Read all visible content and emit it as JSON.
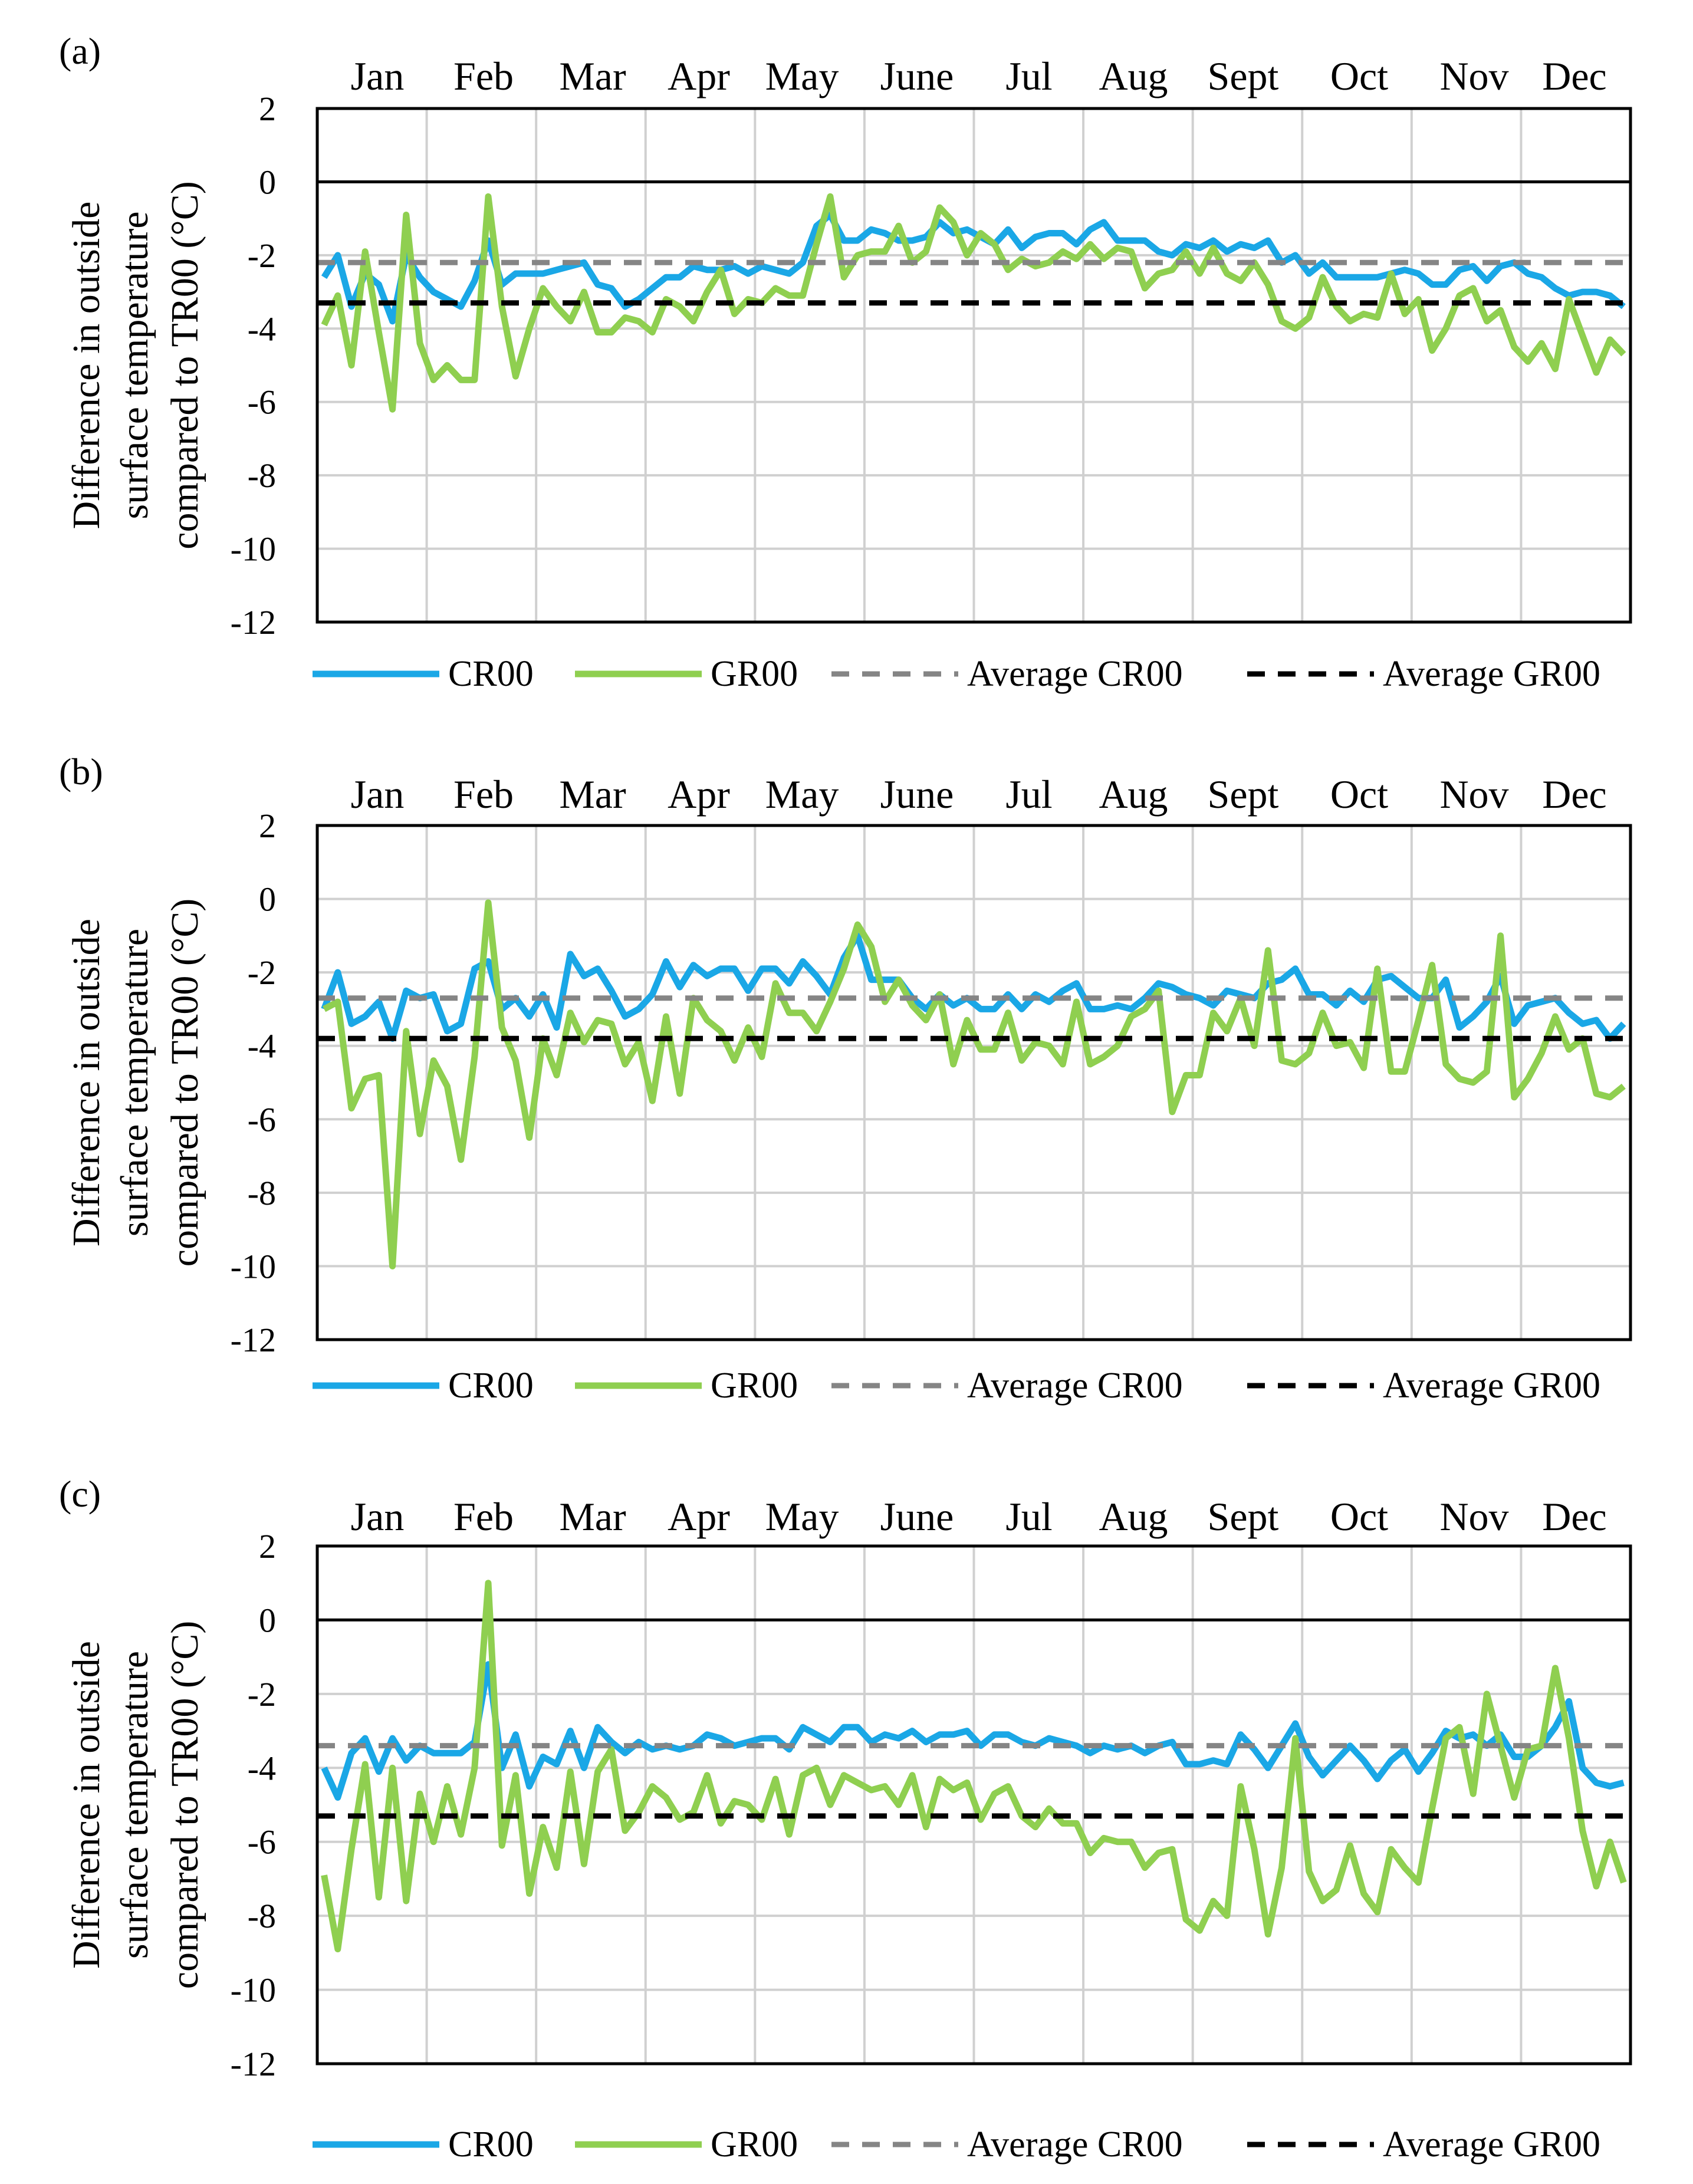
{
  "figure": {
    "legend": {
      "cr": "CR00",
      "gr": "GR00",
      "avg_cr": "Average CR00",
      "avg_gr": "Average GR00"
    },
    "colors": {
      "cr": "#1aa7e6",
      "gr": "#8fcf50",
      "avg_cr": "#858585",
      "avg_gr": "#000000",
      "grid": "#d0d0d0"
    }
  },
  "chart_data": [
    {
      "type": "line",
      "panel_label": "(a)",
      "ylabel": [
        "Difference in outside",
        "surface temperature",
        "compared to TR00 (°C)"
      ],
      "xlabel": "",
      "months": [
        "Jan",
        "Feb",
        "Mar",
        "Apr",
        "May",
        "June",
        "Jul",
        "Aug",
        "Sept",
        "Oct",
        "Nov",
        "Dec"
      ],
      "ylim": [
        -12,
        2
      ],
      "yticks": [
        2,
        0,
        -2,
        -4,
        -6,
        -8,
        -10,
        -12
      ],
      "grid": true,
      "zero_line": true,
      "average_cr": -2.2,
      "average_gr": -3.3,
      "series": [
        {
          "name": "CR00",
          "values": [
            -2.6,
            -2.0,
            -3.4,
            -2.5,
            -2.8,
            -3.8,
            -2.0,
            -2.6,
            -3.0,
            -3.2,
            -3.4,
            -2.7,
            -1.6,
            -2.8,
            -2.5,
            -2.5,
            -2.5,
            -2.4,
            -2.3,
            -2.2,
            -2.8,
            -2.9,
            -3.4,
            -3.2,
            -2.9,
            -2.6,
            -2.6,
            -2.3,
            -2.4,
            -2.4,
            -2.3,
            -2.5,
            -2.3,
            -2.4,
            -2.5,
            -2.2,
            -1.2,
            -0.9,
            -1.6,
            -1.6,
            -1.3,
            -1.4,
            -1.6,
            -1.6,
            -1.5,
            -1.1,
            -1.4,
            -1.3,
            -1.5,
            -1.7,
            -1.3,
            -1.8,
            -1.5,
            -1.4,
            -1.4,
            -1.7,
            -1.3,
            -1.1,
            -1.6,
            -1.6,
            -1.6,
            -1.9,
            -2.0,
            -1.7,
            -1.8,
            -1.6,
            -1.9,
            -1.7,
            -1.8,
            -1.6,
            -2.2,
            -2.0,
            -2.5,
            -2.2,
            -2.6,
            -2.6,
            -2.6,
            -2.6,
            -2.5,
            -2.4,
            -2.5,
            -2.8,
            -2.8,
            -2.4,
            -2.3,
            -2.7,
            -2.3,
            -2.2,
            -2.5,
            -2.6,
            -2.9,
            -3.1,
            -3.0,
            -3.0,
            -3.1,
            -3.4
          ]
        },
        {
          "name": "GR00",
          "values": [
            -3.9,
            -3.1,
            -5.0,
            -1.9,
            -4.1,
            -6.2,
            -0.9,
            -4.4,
            -5.4,
            -5.0,
            -5.4,
            -5.4,
            -0.4,
            -3.4,
            -5.3,
            -4.0,
            -2.9,
            -3.4,
            -3.8,
            -3.0,
            -4.1,
            -4.1,
            -3.7,
            -3.8,
            -4.1,
            -3.2,
            -3.4,
            -3.8,
            -3.0,
            -2.4,
            -3.6,
            -3.2,
            -3.3,
            -2.9,
            -3.1,
            -3.1,
            -1.7,
            -0.4,
            -2.6,
            -2.0,
            -1.9,
            -1.9,
            -1.2,
            -2.2,
            -1.9,
            -0.7,
            -1.1,
            -2.0,
            -1.4,
            -1.7,
            -2.4,
            -2.1,
            -2.3,
            -2.2,
            -1.9,
            -2.1,
            -1.7,
            -2.1,
            -1.8,
            -1.9,
            -2.9,
            -2.5,
            -2.4,
            -1.9,
            -2.5,
            -1.8,
            -2.5,
            -2.7,
            -2.2,
            -2.8,
            -3.8,
            -4.0,
            -3.7,
            -2.6,
            -3.4,
            -3.8,
            -3.6,
            -3.7,
            -2.5,
            -3.6,
            -3.2,
            -4.6,
            -4.0,
            -3.1,
            -2.9,
            -3.8,
            -3.5,
            -4.5,
            -4.9,
            -4.4,
            -5.1,
            -3.2,
            -4.2,
            -5.2,
            -4.3,
            -4.7
          ]
        }
      ]
    },
    {
      "type": "line",
      "panel_label": "(b)",
      "ylabel": [
        "Difference in outside",
        "surface temperature",
        "compared to TR00 (°C)"
      ],
      "xlabel": "",
      "months": [
        "Jan",
        "Feb",
        "Mar",
        "Apr",
        "May",
        "June",
        "Jul",
        "Aug",
        "Sept",
        "Oct",
        "Nov",
        "Dec"
      ],
      "ylim": [
        -12,
        2
      ],
      "yticks": [
        2,
        0,
        -2,
        -4,
        -6,
        -8,
        -10,
        -12
      ],
      "grid": true,
      "zero_line": false,
      "average_cr": -2.7,
      "average_gr": -3.8,
      "series": [
        {
          "name": "CR00",
          "values": [
            -3.0,
            -2.0,
            -3.4,
            -3.2,
            -2.8,
            -3.8,
            -2.5,
            -2.7,
            -2.6,
            -3.6,
            -3.4,
            -1.9,
            -1.7,
            -3.0,
            -2.7,
            -3.2,
            -2.6,
            -3.5,
            -1.5,
            -2.1,
            -1.9,
            -2.5,
            -3.2,
            -3.0,
            -2.6,
            -1.7,
            -2.4,
            -1.8,
            -2.1,
            -1.9,
            -1.9,
            -2.5,
            -1.9,
            -1.9,
            -2.3,
            -1.7,
            -2.1,
            -2.6,
            -1.6,
            -1.0,
            -2.2,
            -2.2,
            -2.2,
            -2.7,
            -3.0,
            -2.6,
            -2.9,
            -2.7,
            -3.0,
            -3.0,
            -2.6,
            -3.0,
            -2.6,
            -2.8,
            -2.5,
            -2.3,
            -3.0,
            -3.0,
            -2.9,
            -3.0,
            -2.7,
            -2.3,
            -2.4,
            -2.6,
            -2.7,
            -2.9,
            -2.5,
            -2.6,
            -2.7,
            -2.3,
            -2.2,
            -1.9,
            -2.6,
            -2.6,
            -2.9,
            -2.5,
            -2.8,
            -2.2,
            -2.1,
            -2.4,
            -2.7,
            -2.7,
            -2.2,
            -3.5,
            -3.2,
            -2.8,
            -2.1,
            -3.4,
            -2.9,
            -2.8,
            -2.7,
            -3.1,
            -3.4,
            -3.3,
            -3.8,
            -3.4
          ]
        },
        {
          "name": "GR00",
          "values": [
            -3.0,
            -2.8,
            -5.7,
            -4.9,
            -4.8,
            -10.0,
            -3.6,
            -6.4,
            -4.4,
            -5.1,
            -7.1,
            -4.3,
            -0.1,
            -3.5,
            -4.4,
            -6.5,
            -3.8,
            -4.8,
            -3.1,
            -3.9,
            -3.3,
            -3.4,
            -4.5,
            -3.9,
            -5.5,
            -3.2,
            -5.3,
            -2.7,
            -3.3,
            -3.6,
            -4.4,
            -3.5,
            -4.3,
            -2.3,
            -3.1,
            -3.1,
            -3.6,
            -2.8,
            -1.9,
            -0.7,
            -1.3,
            -2.8,
            -2.2,
            -2.9,
            -3.3,
            -2.6,
            -4.5,
            -3.3,
            -4.1,
            -4.1,
            -3.1,
            -4.4,
            -3.9,
            -4.0,
            -4.5,
            -2.8,
            -4.5,
            -4.3,
            -4.0,
            -3.2,
            -3.0,
            -2.5,
            -5.8,
            -4.8,
            -4.8,
            -3.1,
            -3.6,
            -2.7,
            -4.0,
            -1.4,
            -4.4,
            -4.5,
            -4.2,
            -3.1,
            -4.0,
            -3.9,
            -4.6,
            -1.9,
            -4.7,
            -4.7,
            -3.3,
            -1.8,
            -4.5,
            -4.9,
            -5.0,
            -4.7,
            -1.0,
            -5.4,
            -4.9,
            -4.2,
            -3.2,
            -4.1,
            -3.8,
            -5.3,
            -5.4,
            -5.1
          ]
        }
      ]
    },
    {
      "type": "line",
      "panel_label": "(c)",
      "ylabel": [
        "Difference in outside",
        "surface temperature",
        "compared to TR00 (°C)"
      ],
      "xlabel": "",
      "months": [
        "Jan",
        "Feb",
        "Mar",
        "Apr",
        "May",
        "June",
        "Jul",
        "Aug",
        "Sept",
        "Oct",
        "Nov",
        "Dec"
      ],
      "ylim": [
        -12,
        2
      ],
      "yticks": [
        2,
        0,
        -2,
        -4,
        -6,
        -8,
        -10,
        -12
      ],
      "grid": true,
      "zero_line": true,
      "average_cr": -3.4,
      "average_gr": -5.3,
      "series": [
        {
          "name": "CR00",
          "values": [
            -4.0,
            -4.8,
            -3.6,
            -3.2,
            -4.1,
            -3.2,
            -3.8,
            -3.4,
            -3.6,
            -3.6,
            -3.6,
            -3.3,
            -1.2,
            -4.0,
            -3.1,
            -4.5,
            -3.7,
            -3.9,
            -3.0,
            -4.0,
            -2.9,
            -3.3,
            -3.6,
            -3.3,
            -3.5,
            -3.4,
            -3.5,
            -3.4,
            -3.1,
            -3.2,
            -3.4,
            -3.3,
            -3.2,
            -3.2,
            -3.5,
            -2.9,
            -3.1,
            -3.3,
            -2.9,
            -2.9,
            -3.3,
            -3.1,
            -3.2,
            -3.0,
            -3.3,
            -3.1,
            -3.1,
            -3.0,
            -3.4,
            -3.1,
            -3.1,
            -3.3,
            -3.4,
            -3.2,
            -3.3,
            -3.4,
            -3.6,
            -3.4,
            -3.5,
            -3.4,
            -3.6,
            -3.4,
            -3.3,
            -3.9,
            -3.9,
            -3.8,
            -3.9,
            -3.1,
            -3.5,
            -4.0,
            -3.4,
            -2.8,
            -3.7,
            -4.2,
            -3.8,
            -3.4,
            -3.8,
            -4.3,
            -3.8,
            -3.5,
            -4.1,
            -3.6,
            -3.0,
            -3.2,
            -3.1,
            -3.4,
            -3.1,
            -3.7,
            -3.7,
            -3.4,
            -2.9,
            -2.2,
            -4.0,
            -4.4,
            -4.5,
            -4.4
          ]
        },
        {
          "name": "GR00",
          "values": [
            -6.9,
            -8.9,
            -6.2,
            -3.9,
            -7.5,
            -4.0,
            -7.6,
            -4.7,
            -6.0,
            -4.5,
            -5.8,
            -4.0,
            1.0,
            -6.1,
            -4.2,
            -7.4,
            -5.6,
            -6.7,
            -4.1,
            -6.6,
            -4.1,
            -3.5,
            -5.7,
            -5.2,
            -4.5,
            -4.8,
            -5.4,
            -5.2,
            -4.2,
            -5.5,
            -4.9,
            -5.0,
            -5.4,
            -4.3,
            -5.8,
            -4.2,
            -4.0,
            -5.0,
            -4.2,
            -4.4,
            -4.6,
            -4.5,
            -5.0,
            -4.2,
            -5.6,
            -4.3,
            -4.6,
            -4.4,
            -5.4,
            -4.7,
            -4.5,
            -5.3,
            -5.6,
            -5.1,
            -5.5,
            -5.5,
            -6.3,
            -5.9,
            -6.0,
            -6.0,
            -6.7,
            -6.3,
            -6.2,
            -8.1,
            -8.4,
            -7.6,
            -8.0,
            -4.5,
            -6.2,
            -8.5,
            -6.7,
            -3.2,
            -6.8,
            -7.6,
            -7.3,
            -6.1,
            -7.4,
            -7.9,
            -6.2,
            -6.7,
            -7.1,
            -5.1,
            -3.2,
            -2.9,
            -4.7,
            -2.0,
            -3.4,
            -4.8,
            -3.5,
            -3.4,
            -1.3,
            -3.2,
            -5.7,
            -7.2,
            -6.0,
            -7.1
          ]
        }
      ]
    }
  ]
}
